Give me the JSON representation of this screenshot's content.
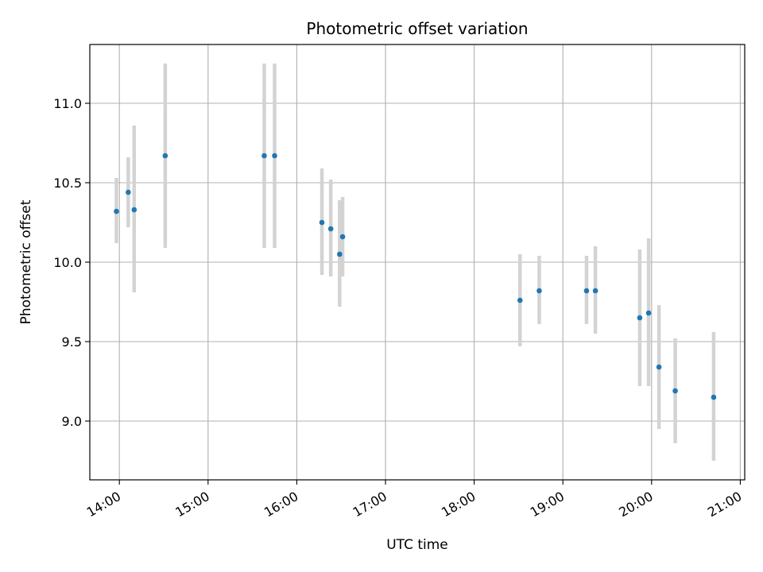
{
  "chart_data": {
    "type": "scatter",
    "title": "Photometric offset variation",
    "xlabel": "UTC time",
    "ylabel": "Photometric offset",
    "x_tick_labels": [
      "14:00",
      "15:00",
      "16:00",
      "17:00",
      "18:00",
      "19:00",
      "20:00",
      "21:00"
    ],
    "y_tick_labels": [
      "9.0",
      "9.5",
      "10.0",
      "10.5",
      "11.0"
    ],
    "y_ticks": [
      9.0,
      9.5,
      10.0,
      10.5,
      11.0
    ],
    "xlim": [
      "13:40",
      "21:03"
    ],
    "ylim": [
      8.63,
      11.37
    ],
    "grid": true,
    "colors": {
      "points": "#1f77b4",
      "errorbars": "#d3d3d3",
      "grid": "#b0b0b0"
    },
    "series": [
      {
        "points": [
          {
            "x": "13:58",
            "y": 10.32,
            "ylow": 10.12,
            "yhigh": 10.53
          },
          {
            "x": "14:06",
            "y": 10.44,
            "ylow": 10.22,
            "yhigh": 10.66
          },
          {
            "x": "14:10",
            "y": 10.33,
            "ylow": 9.81,
            "yhigh": 10.86
          },
          {
            "x": "14:31",
            "y": 10.67,
            "ylow": 10.09,
            "yhigh": 11.25
          },
          {
            "x": "15:38",
            "y": 10.67,
            "ylow": 10.09,
            "yhigh": 11.25
          },
          {
            "x": "15:45",
            "y": 10.67,
            "ylow": 10.09,
            "yhigh": 11.25
          },
          {
            "x": "16:17",
            "y": 10.25,
            "ylow": 9.92,
            "yhigh": 10.59
          },
          {
            "x": "16:23",
            "y": 10.21,
            "ylow": 9.91,
            "yhigh": 10.52
          },
          {
            "x": "16:29",
            "y": 10.05,
            "ylow": 9.72,
            "yhigh": 10.39
          },
          {
            "x": "16:31",
            "y": 10.16,
            "ylow": 9.91,
            "yhigh": 10.41
          },
          {
            "x": "18:31",
            "y": 9.76,
            "ylow": 9.47,
            "yhigh": 10.05
          },
          {
            "x": "18:44",
            "y": 9.82,
            "ylow": 9.61,
            "yhigh": 10.04
          },
          {
            "x": "19:16",
            "y": 9.82,
            "ylow": 9.61,
            "yhigh": 10.04
          },
          {
            "x": "19:22",
            "y": 9.82,
            "ylow": 9.55,
            "yhigh": 10.1
          },
          {
            "x": "19:52",
            "y": 9.65,
            "ylow": 9.22,
            "yhigh": 10.08
          },
          {
            "x": "19:58",
            "y": 9.68,
            "ylow": 9.22,
            "yhigh": 10.15
          },
          {
            "x": "20:05",
            "y": 9.34,
            "ylow": 8.95,
            "yhigh": 9.73
          },
          {
            "x": "20:16",
            "y": 9.19,
            "ylow": 8.86,
            "yhigh": 9.52
          },
          {
            "x": "20:42",
            "y": 9.15,
            "ylow": 8.75,
            "yhigh": 9.56
          }
        ]
      }
    ]
  }
}
